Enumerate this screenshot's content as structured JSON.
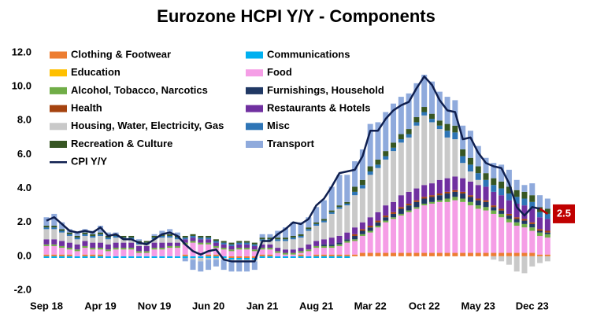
{
  "chart_data": {
    "type": "bar",
    "title": "Eurozone HCPI Y/Y - Components",
    "categories": [
      "Sep 18",
      null,
      null,
      null,
      null,
      null,
      null,
      "Apr 19",
      null,
      null,
      null,
      null,
      null,
      null,
      "Nov 19",
      null,
      null,
      null,
      null,
      null,
      null,
      "Jun 20",
      null,
      null,
      null,
      null,
      null,
      null,
      "Jan 21",
      null,
      null,
      null,
      null,
      null,
      null,
      "Aug 21",
      null,
      null,
      null,
      null,
      null,
      null,
      "Mar 22",
      null,
      null,
      null,
      null,
      null,
      null,
      "Oct 22",
      null,
      null,
      null,
      null,
      null,
      null,
      "May 23",
      null,
      null,
      null,
      null,
      null,
      null,
      "Dec 23",
      null,
      null
    ],
    "ylim": [
      -2,
      12
    ],
    "yticks": [
      {
        "value": -2,
        "label": "-2.0"
      },
      {
        "value": 0,
        "label": "0.0"
      },
      {
        "value": 2,
        "label": "2.0"
      },
      {
        "value": 4,
        "label": "4.0"
      },
      {
        "value": 6,
        "label": "6.0"
      },
      {
        "value": 8,
        "label": "8.0"
      },
      {
        "value": 10,
        "label": "10.0"
      },
      {
        "value": 12,
        "label": "12.0"
      }
    ],
    "stacked": true,
    "series": [
      {
        "name": "Clothing & Footwear",
        "color": "#ed7d31",
        "values": [
          0.1,
          0.1,
          0.1,
          0.1,
          0,
          0.1,
          0.1,
          0.1,
          0,
          0,
          0,
          0,
          0,
          0,
          0,
          0,
          0,
          0,
          0.1,
          0,
          0,
          0.1,
          0.1,
          0,
          -0.1,
          -0.1,
          -0.1,
          -0.1,
          0.1,
          0.1,
          0,
          0,
          0,
          0.1,
          0,
          0.1,
          0.1,
          0.1,
          0.1,
          0.1,
          0.1,
          0.2,
          0.2,
          0.2,
          0.2,
          0.2,
          0.2,
          0.2,
          0.2,
          0.2,
          0.2,
          0.2,
          0.2,
          0.2,
          0.2,
          0.2,
          0.2,
          0.2,
          0.2,
          0.2,
          0.2,
          0.2,
          0.2,
          0.2,
          0.1,
          0.1
        ]
      },
      {
        "name": "Communications",
        "color": "#00b0f0",
        "values": [
          -0.1,
          -0.1,
          -0.1,
          -0.1,
          -0.1,
          -0.1,
          -0.1,
          -0.1,
          -0.1,
          -0.1,
          -0.1,
          -0.1,
          -0.1,
          -0.1,
          -0.1,
          -0.1,
          -0.1,
          -0.1,
          -0.1,
          -0.1,
          -0.1,
          -0.1,
          -0.1,
          -0.1,
          -0.1,
          -0.1,
          -0.1,
          -0.1,
          -0.1,
          -0.1,
          -0.1,
          -0.1,
          -0.1,
          -0.1,
          -0.1,
          -0.1,
          -0.1,
          -0.1,
          -0.1,
          -0.1,
          0,
          0,
          0,
          0,
          0,
          0,
          0,
          0,
          0,
          0,
          0,
          0,
          0,
          0,
          0,
          0,
          0,
          0,
          0,
          0,
          0,
          0,
          0,
          0,
          0,
          0
        ]
      },
      {
        "name": "Education",
        "color": "#ffc000",
        "values": [
          0,
          0,
          0,
          0,
          0,
          0,
          0,
          0,
          0,
          0,
          0,
          0,
          0,
          0,
          0,
          0,
          0,
          0,
          0,
          0,
          0,
          0,
          0,
          0,
          0,
          0,
          0,
          0,
          0,
          0,
          0,
          0,
          0,
          0,
          0,
          0,
          0,
          0,
          0,
          0,
          0,
          0,
          0,
          0,
          0,
          0,
          0,
          0,
          0,
          0,
          0,
          0,
          0,
          0,
          0,
          0,
          0,
          0,
          0,
          0,
          0,
          0,
          0,
          0,
          0,
          0
        ]
      },
      {
        "name": "Food",
        "color": "#f59ee6",
        "values": [
          0.5,
          0.5,
          0.4,
          0.3,
          0.3,
          0.4,
          0.3,
          0.3,
          0.3,
          0.4,
          0.4,
          0.4,
          0.2,
          0.2,
          0.4,
          0.4,
          0.5,
          0.5,
          0.6,
          0.8,
          0.7,
          0.6,
          0.4,
          0.4,
          0.3,
          0.4,
          0.4,
          0.3,
          0.3,
          0.3,
          0.2,
          0.1,
          0.1,
          0.1,
          0.3,
          0.4,
          0.4,
          0.4,
          0.5,
          0.7,
          0.8,
          1.0,
          1.2,
          1.5,
          1.8,
          2.0,
          2.2,
          2.4,
          2.6,
          2.8,
          2.9,
          3.0,
          3.0,
          3.1,
          3.0,
          2.8,
          2.6,
          2.5,
          2.3,
          2.1,
          1.8,
          1.6,
          1.5,
          1.3,
          1.1,
          1.0
        ]
      },
      {
        "name": "Alcohol, Tobacco, Narcotics",
        "color": "#70ad47",
        "values": [
          0.1,
          0.1,
          0.1,
          0.1,
          0.1,
          0.1,
          0.1,
          0.1,
          0.1,
          0.1,
          0.1,
          0.1,
          0.1,
          0.1,
          0.1,
          0.1,
          0.1,
          0.1,
          0.1,
          0.1,
          0.1,
          0.1,
          0.1,
          0.1,
          0.1,
          0.1,
          0.1,
          0.1,
          0.1,
          0.1,
          0.1,
          0.1,
          0.1,
          0.1,
          0.1,
          0.1,
          0.1,
          0.1,
          0.1,
          0.1,
          0.1,
          0.1,
          0.1,
          0.1,
          0.1,
          0.1,
          0.1,
          0.1,
          0.1,
          0.1,
          0.1,
          0.1,
          0.2,
          0.2,
          0.2,
          0.2,
          0.2,
          0.2,
          0.2,
          0.2,
          0.2,
          0.2,
          0.2,
          0.2,
          0.2,
          0.2
        ]
      },
      {
        "name": "Furnishings, Household",
        "color": "#203864",
        "values": [
          0,
          0,
          0,
          0,
          0,
          0,
          0,
          0,
          0,
          0,
          0,
          0,
          0,
          0,
          0,
          0,
          0,
          0,
          0,
          0,
          0,
          0,
          0,
          0,
          0,
          0,
          0,
          0,
          0,
          0,
          0,
          0,
          0,
          0,
          0,
          0,
          0.1,
          0.1,
          0.1,
          0.1,
          0.2,
          0.2,
          0.2,
          0.2,
          0.2,
          0.2,
          0.3,
          0.3,
          0.3,
          0.3,
          0.3,
          0.3,
          0.3,
          0.3,
          0.3,
          0.3,
          0.3,
          0.3,
          0.2,
          0.2,
          0.2,
          0.2,
          0.2,
          0.2,
          0.1,
          0.1
        ]
      },
      {
        "name": "Health",
        "color": "#a5430f",
        "values": [
          0,
          0,
          0,
          0,
          0,
          0,
          0,
          0,
          0,
          0,
          0,
          0,
          0,
          0,
          0,
          0,
          0,
          0,
          0,
          0,
          0,
          0,
          0,
          0,
          0,
          0,
          0,
          0,
          0,
          0,
          0,
          0,
          0,
          0,
          0,
          0,
          0,
          0,
          0,
          0,
          0.1,
          0.1,
          0.1,
          0.1,
          0.1,
          0.1,
          0.1,
          0.1,
          0.1,
          0.1,
          0.1,
          0.1,
          0.1,
          0.1,
          0.1,
          0.1,
          0.1,
          0.1,
          0.1,
          0.1,
          0.1,
          0.1,
          0.1,
          0.1,
          0.1,
          0.1
        ]
      },
      {
        "name": "Restaurants & Hotels",
        "color": "#7030a0",
        "values": [
          0.3,
          0.3,
          0.3,
          0.3,
          0.3,
          0.3,
          0.3,
          0.3,
          0.3,
          0.3,
          0.3,
          0.3,
          0.3,
          0.3,
          0.3,
          0.3,
          0.2,
          0.2,
          0.2,
          0.2,
          0.2,
          0.2,
          0.2,
          0.2,
          0.2,
          0.2,
          0.2,
          0.2,
          0.2,
          0.2,
          0.2,
          0.2,
          0.2,
          0.2,
          0.3,
          0.3,
          0.3,
          0.4,
          0.4,
          0.4,
          0.4,
          0.4,
          0.5,
          0.5,
          0.6,
          0.6,
          0.7,
          0.7,
          0.7,
          0.7,
          0.7,
          0.8,
          0.8,
          0.8,
          0.8,
          0.8,
          0.8,
          0.8,
          0.8,
          0.8,
          0.8,
          0.8,
          0.8,
          0.8,
          0.7,
          0.7
        ]
      },
      {
        "name": "Housing, Water, Electricity, Gas",
        "color": "#c9c9c9",
        "values": [
          0.6,
          0.6,
          0.5,
          0.4,
          0.3,
          0.3,
          0.3,
          0.4,
          0.3,
          0.3,
          0.2,
          0.2,
          0.1,
          0.1,
          0.2,
          0.3,
          0.3,
          0.2,
          0,
          -0.1,
          -0.2,
          -0.1,
          -0.1,
          -0.1,
          -0.1,
          -0.1,
          -0.1,
          -0.1,
          0.2,
          0.2,
          0.4,
          0.5,
          0.6,
          0.6,
          0.8,
          0.9,
          1.0,
          1.4,
          1.6,
          1.6,
          1.9,
          2.0,
          2.5,
          2.6,
          2.7,
          3.0,
          3.1,
          3.2,
          3.7,
          4.1,
          3.6,
          3.0,
          2.4,
          2.2,
          0.9,
          0.6,
          0.3,
          0,
          -0.2,
          -0.3,
          -0.5,
          -0.9,
          -1.0,
          -0.6,
          -0.4,
          -0.3
        ]
      },
      {
        "name": "Misc",
        "color": "#2e75b6",
        "values": [
          0.1,
          0.1,
          0.1,
          0.1,
          0.1,
          0.1,
          0.1,
          0.1,
          0.1,
          0.1,
          0.1,
          0.1,
          0.1,
          0.1,
          0.1,
          0.1,
          0.1,
          0.1,
          0.1,
          0.1,
          0.1,
          0.1,
          0.1,
          0.1,
          0.1,
          0.1,
          0.1,
          0.1,
          0.1,
          0.1,
          0.1,
          0.1,
          0.1,
          0.1,
          0.1,
          0.1,
          0.1,
          0.1,
          0.1,
          0.1,
          0.2,
          0.2,
          0.2,
          0.2,
          0.2,
          0.2,
          0.2,
          0.2,
          0.2,
          0.2,
          0.2,
          0.2,
          0.4,
          0.4,
          0.4,
          0.4,
          0.4,
          0.4,
          0.4,
          0.4,
          0.4,
          0.4,
          0.4,
          0.4,
          0.3,
          0.3
        ]
      },
      {
        "name": "Recreation & Culture",
        "color": "#375623",
        "values": [
          0.1,
          0.1,
          0.1,
          0.1,
          0.1,
          0.1,
          0.1,
          0.1,
          0.1,
          0.1,
          0.1,
          0.1,
          0.1,
          0.1,
          0.1,
          0.1,
          0.1,
          0.1,
          0.1,
          0.1,
          0.1,
          0.1,
          0.1,
          0.1,
          0.1,
          0.1,
          0.1,
          0.1,
          0.1,
          0.1,
          0.1,
          0.1,
          0.1,
          0.1,
          0.1,
          0.1,
          0.1,
          0.1,
          0.1,
          0.1,
          0.3,
          0.3,
          0.3,
          0.3,
          0.3,
          0.3,
          0.3,
          0.3,
          0.3,
          0.3,
          0.3,
          0.3,
          0.4,
          0.4,
          0.4,
          0.4,
          0.4,
          0.4,
          0.4,
          0.4,
          0.4,
          0.4,
          0.4,
          0.4,
          0.3,
          0.3
        ]
      },
      {
        "name": "Transport",
        "color": "#8faadc",
        "values": [
          0.5,
          0.7,
          0.4,
          0.2,
          0.2,
          0.2,
          0.2,
          0.4,
          0.2,
          0.1,
          0,
          0,
          0.1,
          0,
          0.1,
          0.2,
          0.3,
          0.2,
          -0.2,
          -0.6,
          -0.6,
          -0.6,
          -0.4,
          -0.6,
          -0.6,
          -0.6,
          -0.6,
          -0.5,
          0.2,
          0.2,
          0.4,
          0.6,
          0.8,
          0.7,
          0.6,
          0.9,
          1.1,
          1.4,
          1.8,
          1.6,
          1.5,
          1.8,
          2.5,
          2.2,
          2.3,
          2.3,
          2.2,
          2.1,
          2.0,
          1.9,
          1.9,
          1.7,
          1.6,
          1.5,
          1.4,
          1.6,
          1.2,
          0.9,
          0.9,
          1.0,
          1.0,
          0.6,
          0.4,
          0.7,
          0.7,
          0.6
        ]
      },
      {
        "name": "CPI Y/Y",
        "type": "line",
        "color": "#0f1f4f",
        "label_color": "#c00000",
        "values": [
          2.1,
          2.3,
          1.9,
          1.5,
          1.4,
          1.5,
          1.4,
          1.7,
          1.2,
          1.3,
          1.0,
          1.0,
          0.8,
          0.7,
          1.0,
          1.3,
          1.4,
          1.2,
          0.7,
          0.3,
          0.1,
          0.3,
          0.4,
          -0.2,
          -0.3,
          -0.3,
          -0.3,
          -0.3,
          0.9,
          0.9,
          1.3,
          1.6,
          2.0,
          1.9,
          2.2,
          3.0,
          3.4,
          4.1,
          4.9,
          5.0,
          5.1,
          5.9,
          7.4,
          7.4,
          8.1,
          8.6,
          8.9,
          9.1,
          9.9,
          10.6,
          10.1,
          9.2,
          8.6,
          8.5,
          6.9,
          7.0,
          6.1,
          5.5,
          5.3,
          5.2,
          4.3,
          2.9,
          2.4,
          2.9,
          2.8,
          2.5
        ]
      }
    ]
  }
}
